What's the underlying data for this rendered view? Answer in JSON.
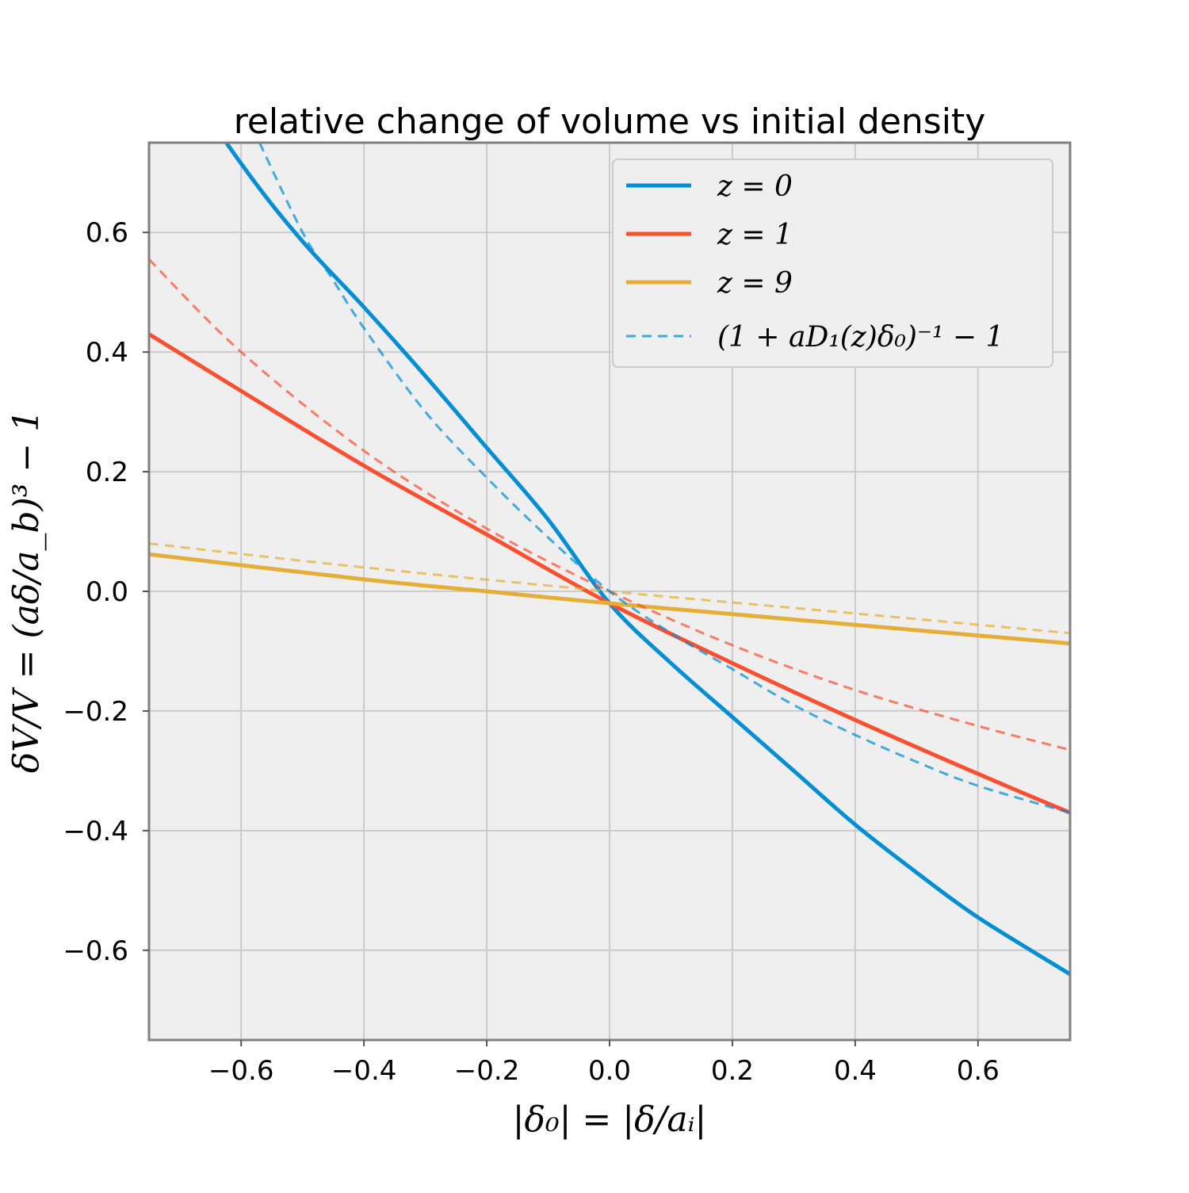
{
  "chart_data": {
    "type": "line",
    "title": "relative change of volume vs initial density",
    "xlabel": "|δ₀| = |δ/aᵢ|",
    "ylabel": "δV/V = (aδ/a_b)³ − 1",
    "xlim": [
      -0.75,
      0.75
    ],
    "ylim": [
      -0.75,
      0.75
    ],
    "xticks": [
      -0.6,
      -0.4,
      -0.2,
      0.0,
      0.2,
      0.4,
      0.6
    ],
    "yticks": [
      -0.6,
      -0.4,
      -0.2,
      0.0,
      0.2,
      0.4,
      0.6
    ],
    "xtick_labels": [
      "−0.6",
      "−0.4",
      "−0.2",
      "0.0",
      "0.2",
      "0.4",
      "0.6"
    ],
    "ytick_labels": [
      "−0.6",
      "−0.4",
      "−0.2",
      "0.0",
      "0.2",
      "0.4",
      "0.6"
    ],
    "grid": true,
    "legend_position": "top-right",
    "background": "#efefef",
    "series": [
      {
        "name": "z = 0",
        "style": "solid",
        "color": "#008fd5",
        "x": [
          -0.75,
          -0.6,
          -0.5,
          -0.4,
          -0.3,
          -0.2,
          -0.1,
          0.0,
          0.1,
          0.2,
          0.3,
          0.4,
          0.5,
          0.6,
          0.75
        ],
        "y": [
          0.94,
          0.715,
          0.585,
          0.475,
          0.36,
          0.24,
          0.12,
          -0.02,
          -0.12,
          -0.21,
          -0.3,
          -0.39,
          -0.47,
          -0.545,
          -0.64
        ]
      },
      {
        "name": "z = 1",
        "style": "solid",
        "color": "#fc4f30",
        "x": [
          -0.75,
          -0.6,
          -0.4,
          -0.2,
          0.0,
          0.2,
          0.4,
          0.6,
          0.75
        ],
        "y": [
          0.43,
          0.335,
          0.21,
          0.095,
          -0.02,
          -0.12,
          -0.215,
          -0.305,
          -0.37
        ]
      },
      {
        "name": "z = 9",
        "style": "solid",
        "color": "#e5ae38",
        "x": [
          -0.75,
          -0.4,
          -0.2,
          0.0,
          0.2,
          0.4,
          0.75
        ],
        "y": [
          0.062,
          0.02,
          0.0,
          -0.02,
          -0.038,
          -0.056,
          -0.087
        ]
      },
      {
        "name": "",
        "style": "dashed",
        "color": "#e5ae38",
        "x": [
          -0.75,
          -0.4,
          0.0,
          0.4,
          0.75
        ],
        "y": [
          0.08,
          0.04,
          0.0,
          -0.037,
          -0.07
        ]
      },
      {
        "name": "",
        "style": "dashed",
        "color": "#fc4f30",
        "x": [
          -0.75,
          -0.6,
          -0.4,
          -0.2,
          0.0,
          0.2,
          0.4,
          0.6,
          0.75
        ],
        "y": [
          0.555,
          0.4,
          0.235,
          0.105,
          0.0,
          -0.09,
          -0.165,
          -0.225,
          -0.265
        ]
      },
      {
        "name": "(1 + aD₁(z)δ₀)⁻¹ − 1",
        "style": "dashed",
        "color": "#008fd5",
        "x": [
          -0.57,
          -0.5,
          -0.45,
          -0.4,
          -0.3,
          -0.2,
          -0.1,
          0.0,
          0.1,
          0.2,
          0.3,
          0.4,
          0.5,
          0.6,
          0.75
        ],
        "y": [
          0.75,
          0.6,
          0.52,
          0.44,
          0.3,
          0.19,
          0.09,
          0.0,
          -0.07,
          -0.13,
          -0.19,
          -0.24,
          -0.285,
          -0.325,
          -0.37
        ]
      }
    ]
  },
  "legend": [
    {
      "label": "z = 0",
      "style": "solid",
      "color": "#008fd5"
    },
    {
      "label": "z = 1",
      "style": "solid",
      "color": "#fc4f30"
    },
    {
      "label": "z = 9",
      "style": "solid",
      "color": "#e5ae38"
    },
    {
      "label": "(1 + aD₁(z)δ₀)⁻¹ − 1",
      "style": "dashed",
      "color": "#008fd5"
    }
  ]
}
